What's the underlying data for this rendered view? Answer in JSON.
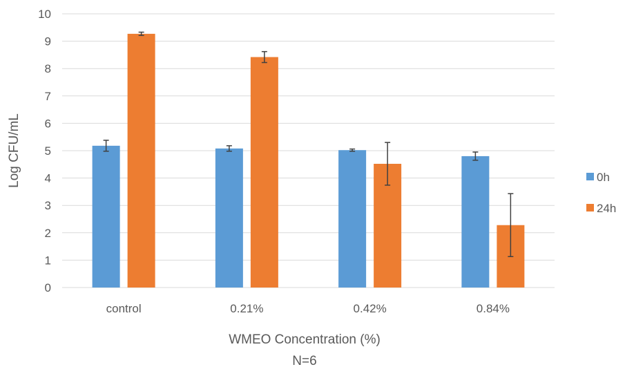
{
  "chart_data": {
    "type": "bar",
    "categories": [
      "control",
      "0.21%",
      "0.42%",
      "0.84%"
    ],
    "series": [
      {
        "name": "0h",
        "color": "#5b9bd5",
        "values": [
          5.18,
          5.08,
          5.02,
          4.8
        ],
        "errors": [
          0.2,
          0.1,
          0.04,
          0.15
        ]
      },
      {
        "name": "24h",
        "color": "#ed7d31",
        "values": [
          9.27,
          8.42,
          4.52,
          2.28
        ],
        "errors": [
          0.06,
          0.2,
          0.78,
          1.15
        ]
      }
    ],
    "yticks": [
      "0",
      "1",
      "2",
      "3",
      "4",
      "5",
      "6",
      "7",
      "8",
      "9",
      "10"
    ],
    "ylim": [
      0,
      10
    ],
    "xlabel": "WMEO Concentration (%)",
    "xlabel_note": "N=6",
    "ylabel": "Log CFU/mL",
    "grid": true,
    "legend_position": "right"
  }
}
